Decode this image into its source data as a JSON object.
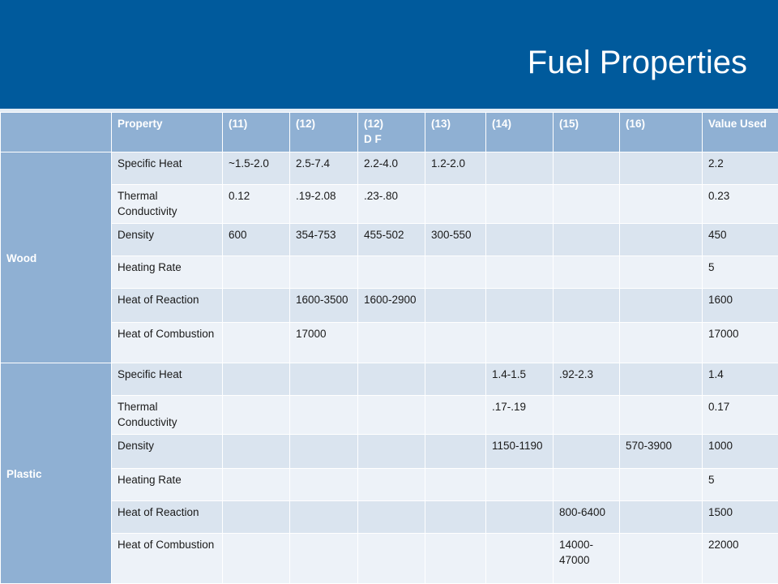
{
  "title": "Fuel Properties",
  "colors": {
    "header_bg": "#005a9c",
    "table_header_bg": "#8fb0d3",
    "row_odd_bg": "#dae4ef",
    "row_even_bg": "#edf2f8"
  },
  "columns": [
    "",
    "Property",
    "(11)",
    "(12)",
    "(12)",
    "(13)",
    "(14)",
    "(15)",
    "(16)",
    "Value Used"
  ],
  "column_sublabels": {
    "col4": "D F"
  },
  "groups": [
    {
      "name": "Wood",
      "rows": [
        {
          "property": "Specific Heat",
          "c11": "~1.5-2.0",
          "c12": "2.5-7.4",
          "c12df": "2.2-4.0",
          "c13": "1.2-2.0",
          "c14": "",
          "c15": "",
          "c16": "",
          "value_used": "2.2"
        },
        {
          "property": "Thermal Conductivity",
          "c11": "0.12",
          "c12": ".19-2.08",
          "c12df": ".23-.80",
          "c13": "",
          "c14": "",
          "c15": "",
          "c16": "",
          "value_used": "0.23"
        },
        {
          "property": "Density",
          "c11": "600",
          "c12": "354-753",
          "c12df": "455-502",
          "c13": "300-550",
          "c14": "",
          "c15": "",
          "c16": "",
          "value_used": "450"
        },
        {
          "property": "Heating Rate",
          "c11": "",
          "c12": "",
          "c12df": "",
          "c13": "",
          "c14": "",
          "c15": "",
          "c16": "",
          "value_used": "5"
        },
        {
          "property": "Heat of Reaction",
          "c11": "",
          "c12": "1600-3500",
          "c12df": "1600-2900",
          "c13": "",
          "c14": "",
          "c15": "",
          "c16": "",
          "value_used": "1600"
        },
        {
          "property": "Heat of Combustion",
          "c11": "",
          "c12": "17000",
          "c12df": "",
          "c13": "",
          "c14": "",
          "c15": "",
          "c16": "",
          "value_used": "17000"
        }
      ]
    },
    {
      "name": "Plastic",
      "rows": [
        {
          "property": "Specific Heat",
          "c11": "",
          "c12": "",
          "c12df": "",
          "c13": "",
          "c14": "1.4-1.5",
          "c15": ".92-2.3",
          "c16": "",
          "value_used": "1.4"
        },
        {
          "property": "Thermal Conductivity",
          "c11": "",
          "c12": "",
          "c12df": "",
          "c13": "",
          "c14": ".17-.19",
          "c15": "",
          "c16": "",
          "value_used": "0.17"
        },
        {
          "property": "Density",
          "c11": "",
          "c12": "",
          "c12df": "",
          "c13": "",
          "c14": "1150-1190",
          "c15": "",
          "c16": "570-3900",
          "value_used": "1000"
        },
        {
          "property": "Heating Rate",
          "c11": "",
          "c12": "",
          "c12df": "",
          "c13": "",
          "c14": "",
          "c15": "",
          "c16": "",
          "value_used": "5"
        },
        {
          "property": "Heat of Reaction",
          "c11": "",
          "c12": "",
          "c12df": "",
          "c13": "",
          "c14": "",
          "c15": "800-6400",
          "c16": "",
          "value_used": "1500"
        },
        {
          "property": "Heat of Combustion",
          "c11": "",
          "c12": "",
          "c12df": "",
          "c13": "",
          "c14": "",
          "c15": "14000-47000",
          "c16": "",
          "value_used": "22000"
        }
      ]
    }
  ]
}
